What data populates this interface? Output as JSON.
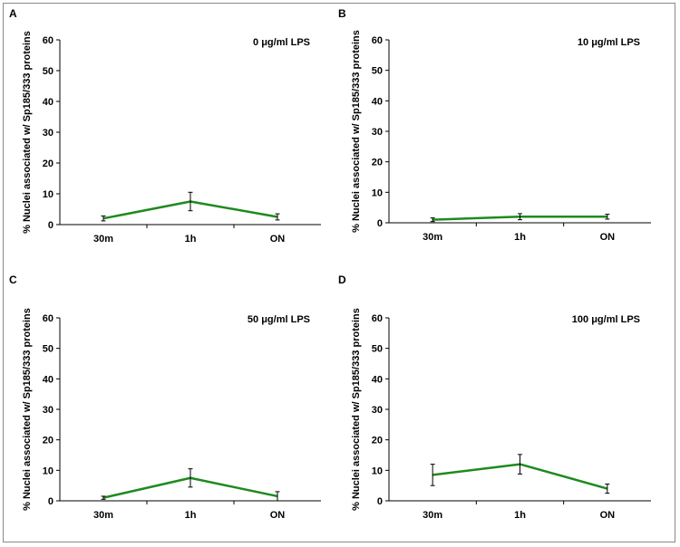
{
  "chart_data": [
    {
      "type": "line",
      "panel_label": "A",
      "title": "0 μg/ml LPS",
      "ylabel": "% Nuclei associated w/ Sp185/333 proteins",
      "xlabel": "",
      "categories": [
        "30m",
        "1h",
        "ON"
      ],
      "ylim": [
        0,
        60
      ],
      "yticks": [
        "0",
        "10",
        "20",
        "30",
        "40",
        "50",
        "60"
      ],
      "grid": false,
      "series": [
        {
          "values": [
            2,
            7.5,
            2.5
          ],
          "errors": [
            0.8,
            3,
            1
          ],
          "color": "#1e8a1e"
        }
      ]
    },
    {
      "type": "line",
      "panel_label": "B",
      "title": "10 μg/ml LPS",
      "ylabel": "% Nuclei associated w/ Sp185/333 proteins",
      "xlabel": "",
      "categories": [
        "30m",
        "1h",
        "ON"
      ],
      "ylim": [
        0,
        60
      ],
      "yticks": [
        "0",
        "10",
        "20",
        "30",
        "40",
        "50",
        "60"
      ],
      "grid": false,
      "series": [
        {
          "values": [
            1,
            2,
            2
          ],
          "errors": [
            0.6,
            1,
            0.8
          ],
          "color": "#1e8a1e"
        }
      ]
    },
    {
      "type": "line",
      "panel_label": "C",
      "title": "50 μg/ml LPS",
      "ylabel": "% Nuclei associated w/ Sp185/333 proteins",
      "xlabel": "",
      "categories": [
        "30m",
        "1h",
        "ON"
      ],
      "ylim": [
        0,
        60
      ],
      "yticks": [
        "0",
        "10",
        "20",
        "30",
        "40",
        "50",
        "60"
      ],
      "grid": false,
      "series": [
        {
          "values": [
            1,
            7.5,
            1.5
          ],
          "errors": [
            0.5,
            3,
            1.5
          ],
          "color": "#1e8a1e"
        }
      ]
    },
    {
      "type": "line",
      "panel_label": "D",
      "title": "100 μg/ml LPS",
      "ylabel": "% Nuclei associated w/ Sp185/333 proteins",
      "xlabel": "",
      "categories": [
        "30m",
        "1h",
        "ON"
      ],
      "ylim": [
        0,
        60
      ],
      "yticks": [
        "0",
        "10",
        "20",
        "30",
        "40",
        "50",
        "60"
      ],
      "grid": false,
      "series": [
        {
          "values": [
            8.5,
            12,
            4
          ],
          "errors": [
            3.5,
            3.2,
            1.5
          ],
          "color": "#1e8a1e"
        }
      ]
    }
  ]
}
